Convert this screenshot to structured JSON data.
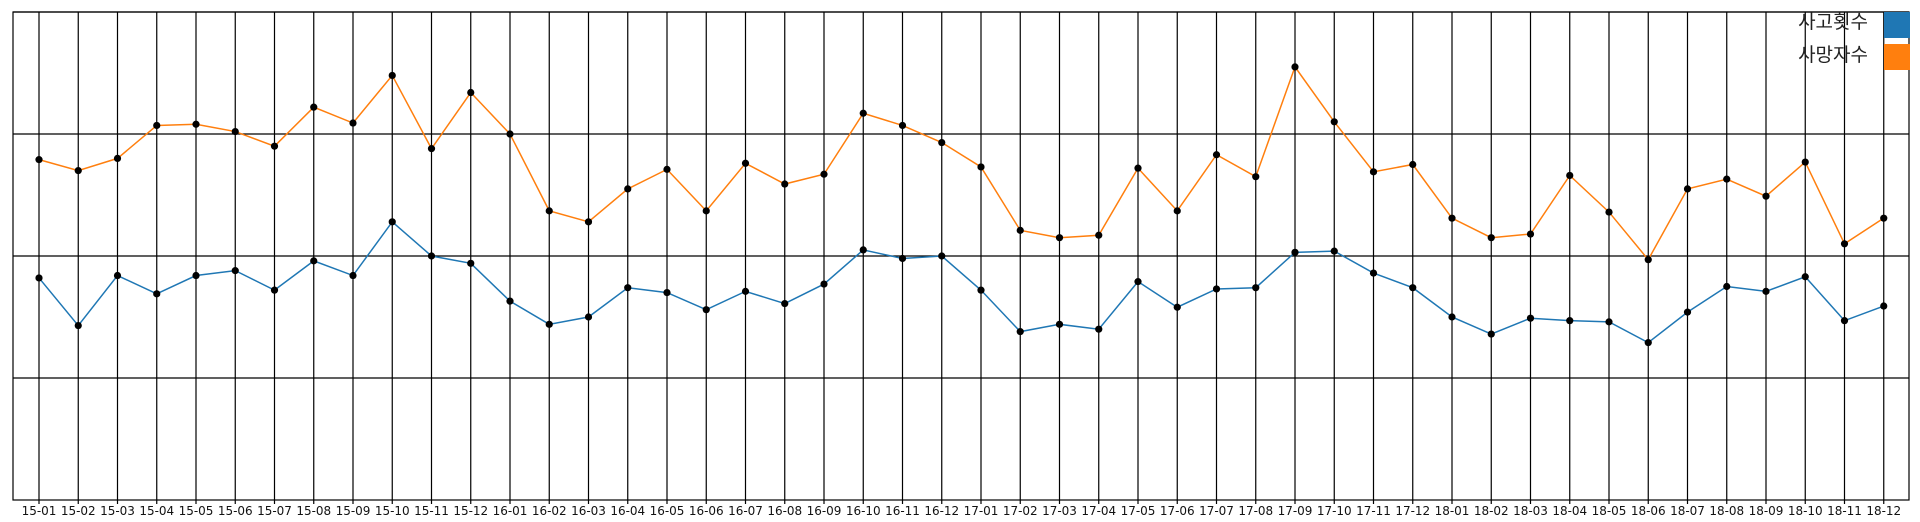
{
  "chart_data": {
    "type": "line",
    "categories": [
      "15-01",
      "15-02",
      "15-03",
      "15-04",
      "15-05",
      "15-06",
      "15-07",
      "15-08",
      "15-09",
      "15-10",
      "15-11",
      "15-12",
      "16-01",
      "16-02",
      "16-03",
      "16-04",
      "16-05",
      "16-06",
      "16-07",
      "16-08",
      "16-09",
      "16-10",
      "16-11",
      "16-12",
      "17-01",
      "17-02",
      "17-03",
      "17-04",
      "17-05",
      "17-06",
      "17-07",
      "17-08",
      "17-09",
      "17-10",
      "17-11",
      "17-12",
      "18-01",
      "18-02",
      "18-03",
      "18-04",
      "18-05",
      "18-06",
      "18-07",
      "18-08",
      "18-09",
      "18-10",
      "18-11",
      "18-12"
    ],
    "series": [
      {
        "name": "사고횟수",
        "color": "#1f77b4",
        "values": [
          1.82,
          1.43,
          1.84,
          1.69,
          1.84,
          1.88,
          1.72,
          1.96,
          1.84,
          2.28,
          2.0,
          1.94,
          1.63,
          1.44,
          1.5,
          1.74,
          1.7,
          1.56,
          1.71,
          1.61,
          1.77,
          2.05,
          1.98,
          2.0,
          1.72,
          1.38,
          1.44,
          1.4,
          1.79,
          1.58,
          1.73,
          1.74,
          2.03,
          2.04,
          1.86,
          1.74,
          1.5,
          1.36,
          1.49,
          1.47,
          1.46,
          1.29,
          1.54,
          1.75,
          1.71,
          1.83,
          1.47,
          1.59
        ]
      },
      {
        "name": "사망자수",
        "color": "#ff7f0e",
        "values": [
          2.79,
          2.7,
          2.8,
          3.07,
          3.08,
          3.02,
          2.9,
          3.22,
          3.09,
          3.48,
          2.88,
          3.34,
          3.0,
          2.37,
          2.28,
          2.55,
          2.71,
          2.37,
          2.76,
          2.59,
          2.67,
          3.17,
          3.07,
          2.93,
          2.73,
          2.21,
          2.15,
          2.17,
          2.72,
          2.37,
          2.83,
          2.65,
          3.55,
          3.1,
          2.69,
          2.75,
          2.31,
          2.15,
          2.18,
          2.66,
          2.36,
          1.97,
          2.55,
          2.63,
          2.49,
          2.77,
          2.1,
          2.31
        ]
      }
    ],
    "ylim": [
      0,
      4
    ],
    "y_gridlines": [
      1,
      2,
      3,
      4
    ],
    "x_gridlines": true,
    "point_color": "#000000",
    "legend_position": "top-right",
    "title": "",
    "xlabel": "",
    "ylabel": ""
  }
}
